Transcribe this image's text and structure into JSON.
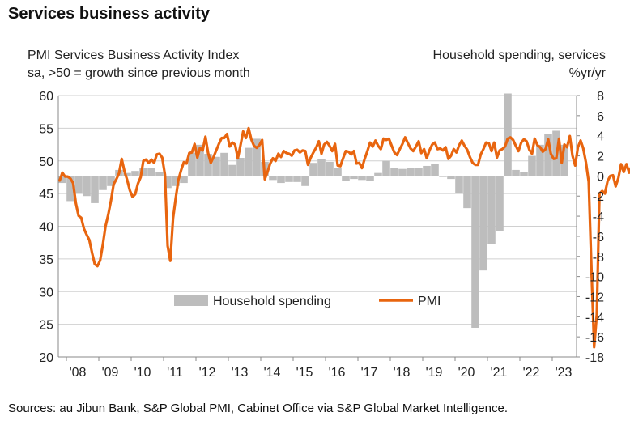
{
  "title": "Services business activity",
  "left_axis_title_line1": "PMI Services Business Activity Index",
  "left_axis_title_line2": "sa, >50 = growth since previous month",
  "right_axis_title_line1": "Household spending, services",
  "right_axis_title_line2": "%yr/yr",
  "source": "Sources: au Jibun Bank, S&P Global PMI, Cabinet Office via S&P Global Market Intelligence.",
  "colors": {
    "pmi": "#e8650f",
    "spending": "#bdbdbd",
    "gridline": "#d0d0d0",
    "axis": "#888888"
  },
  "chart_data": {
    "type": "bar+line",
    "x_start": "2007-10",
    "x_end": "2023-10",
    "xticks": [
      "'08",
      "'09",
      "'10",
      "'11",
      "'12",
      "'13",
      "'14",
      "'15",
      "'16",
      "'17",
      "'18",
      "'19",
      "'20",
      "'21",
      "'22",
      "'23"
    ],
    "y_left": {
      "min": 20,
      "max": 60,
      "ticks": [
        20,
        25,
        30,
        35,
        40,
        45,
        50,
        55,
        60
      ]
    },
    "y_right": {
      "min": -18,
      "max": 8,
      "ticks": [
        -18,
        -16,
        -14,
        -12,
        -10,
        -8,
        -6,
        -4,
        -2,
        0,
        2,
        4,
        6,
        8
      ]
    },
    "grid": "horizontal",
    "legend": {
      "position": "bottom-center",
      "entries": [
        "Household spending",
        "PMI"
      ]
    },
    "series": [
      {
        "name": "Household spending",
        "type": "bar",
        "axis": "right",
        "frequency": "quarterly",
        "x": [
          "2007-Q4",
          "2008-Q1",
          "2008-Q2",
          "2008-Q3",
          "2008-Q4",
          "2009-Q1",
          "2009-Q2",
          "2009-Q3",
          "2009-Q4",
          "2010-Q1",
          "2010-Q2",
          "2010-Q3",
          "2010-Q4",
          "2011-Q1",
          "2011-Q2",
          "2011-Q3",
          "2011-Q4",
          "2012-Q1",
          "2012-Q2",
          "2012-Q3",
          "2012-Q4",
          "2013-Q1",
          "2013-Q2",
          "2013-Q3",
          "2013-Q4",
          "2014-Q1",
          "2014-Q2",
          "2014-Q3",
          "2014-Q4",
          "2015-Q1",
          "2015-Q2",
          "2015-Q3",
          "2015-Q4",
          "2016-Q1",
          "2016-Q2",
          "2016-Q3",
          "2016-Q4",
          "2017-Q1",
          "2017-Q2",
          "2017-Q3",
          "2017-Q4",
          "2018-Q1",
          "2018-Q2",
          "2018-Q3",
          "2018-Q4",
          "2019-Q1",
          "2019-Q2",
          "2019-Q3",
          "2019-Q4",
          "2020-Q1",
          "2020-Q2",
          "2020-Q3",
          "2020-Q4",
          "2021-Q1",
          "2021-Q2",
          "2021-Q3",
          "2021-Q4",
          "2022-Q1",
          "2022-Q2",
          "2022-Q3",
          "2022-Q4",
          "2023-Q1",
          "2023-Q2"
        ],
        "values": [
          -0.7,
          -2.5,
          -1.7,
          -2.0,
          -2.7,
          -1.4,
          -1.0,
          0.6,
          0.3,
          0.5,
          0.8,
          0.8,
          0.4,
          -1.2,
          -1.0,
          -0.7,
          2.3,
          3.1,
          2.2,
          1.9,
          2.3,
          1.1,
          1.8,
          2.8,
          3.7,
          1.4,
          -0.4,
          -0.7,
          -0.6,
          -0.6,
          -1.0,
          1.3,
          1.7,
          1.4,
          0.8,
          -0.5,
          -0.3,
          -0.4,
          -0.5,
          0.3,
          1.5,
          0.8,
          0.7,
          0.8,
          0.8,
          1.0,
          1.2,
          -0.1,
          -0.3,
          -1.7,
          -3.2,
          -15.1,
          -9.4,
          -6.8,
          -5.5,
          8.2,
          0.6,
          0.4,
          2.0,
          3.1,
          4.2,
          4.5,
          3.1
        ]
      },
      {
        "name": "PMI",
        "type": "line",
        "axis": "left",
        "frequency": "monthly",
        "x_first": "2007-10",
        "values": [
          47.0,
          48.2,
          47.6,
          47.6,
          47.3,
          46.6,
          43.5,
          41.6,
          41.3,
          39.6,
          38.7,
          37.9,
          35.9,
          34.2,
          33.9,
          34.8,
          37.2,
          40.0,
          41.8,
          43.9,
          46.4,
          47.2,
          48.1,
          50.3,
          48.4,
          47.1,
          45.5,
          44.5,
          44.9,
          46.5,
          47.5,
          50.0,
          50.2,
          49.7,
          50.2,
          49.7,
          51.0,
          51.1,
          50.5,
          47.9,
          37.0,
          34.7,
          41.2,
          44.3,
          47.1,
          48.6,
          49.8,
          49.6,
          51.2,
          51.3,
          52.6,
          50.5,
          52.0,
          51.6,
          53.7,
          51.2,
          49.7,
          50.6,
          51.6,
          52.6,
          53.5,
          53.5,
          54.1,
          52.2,
          52.8,
          52.5,
          50.4,
          52.4,
          54.5,
          53.5,
          55.0,
          53.3,
          52.3,
          52.0,
          52.4,
          53.2,
          47.2,
          48.3,
          49.6,
          50.4,
          50.0,
          51.1,
          50.6,
          51.5,
          51.2,
          51.1,
          50.8,
          51.6,
          51.7,
          51.3,
          51.6,
          51.5,
          49.4,
          50.5,
          51.3,
          52.0,
          53.0,
          51.1,
          52.5,
          52.9,
          52.3,
          51.5,
          52.6,
          49.3,
          49.2,
          50.4,
          51.5,
          51.4,
          51.0,
          51.5,
          49.6,
          49.7,
          48.9,
          50.3,
          51.5,
          52.8,
          52.2,
          53.1,
          52.3,
          51.8,
          53.4,
          53.2,
          53.4,
          52.3,
          51.3,
          50.9,
          51.8,
          52.6,
          53.6,
          52.7,
          51.9,
          51.5,
          52.2,
          53.0,
          51.2,
          51.8,
          50.4,
          51.6,
          52.5,
          52.8,
          51.8,
          51.9,
          51.6,
          52.1,
          50.3,
          50.8,
          51.8,
          51.3,
          52.4,
          53.1,
          52.3,
          51.7,
          50.6,
          49.7,
          49.4,
          49.4,
          51.0,
          51.8,
          52.8,
          52.7,
          51.5,
          52.8,
          50.5,
          51.6,
          51.8,
          52.2,
          53.4,
          53.6,
          53.2,
          52.3,
          51.5,
          52.8,
          53.3,
          53.0,
          51.7,
          51.1,
          53.4,
          52.4,
          52.1,
          51.4,
          51.8,
          53.3,
          51.1,
          50.3,
          50.4,
          53.4,
          49.7,
          52.5,
          52.1,
          53.8,
          50.8,
          49.3,
          52.1,
          53.1,
          51.9,
          49.7,
          46.8,
          33.8,
          21.5,
          26.5,
          45.0,
          45.4,
          45.0,
          46.9,
          47.7,
          47.8,
          46.1,
          47.4,
          49.5,
          48.3,
          49.5,
          48.2,
          49.3,
          47.0,
          48.6,
          46.8,
          45.9,
          49.9,
          48.6,
          49.3,
          49.5,
          50.9,
          53.5,
          49.5,
          47.6,
          48.0,
          49.5,
          53.0,
          46.8,
          52.0,
          54.0,
          54.7,
          55.2,
          55.6,
          55.8,
          56.0,
          54.3,
          53.8,
          54.1
        ]
      }
    ]
  }
}
